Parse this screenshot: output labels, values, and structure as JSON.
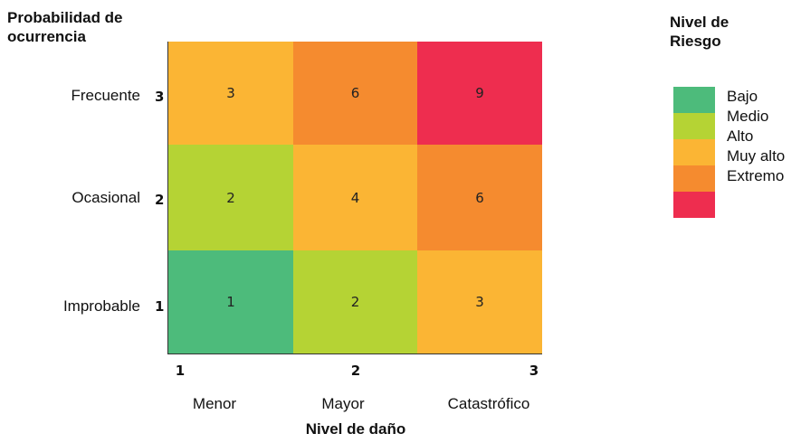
{
  "chart_data": {
    "type": "heatmap",
    "y_title": [
      "Probabilidad de",
      "ocurrencia"
    ],
    "x_title": "Nivel de daño",
    "rows": [
      {
        "label": "Frecuente",
        "value": 3,
        "cells": [
          3,
          6,
          9
        ]
      },
      {
        "label": "Ocasional",
        "value": 2,
        "cells": [
          2,
          4,
          6
        ]
      },
      {
        "label": "Improbable",
        "value": 1,
        "cells": [
          1,
          2,
          3
        ]
      }
    ],
    "columns": [
      {
        "label": "Menor",
        "value": 1
      },
      {
        "label": "Mayor",
        "value": 2
      },
      {
        "label": "Catastrófico",
        "value": 3
      }
    ],
    "legend": {
      "title": [
        "Nivel de",
        "Riesgo"
      ],
      "placement": "top-right",
      "items": [
        {
          "label": "Bajo",
          "color": "#4dbb7b"
        },
        {
          "label": "Medio",
          "color": "#b5d334"
        },
        {
          "label": "Alto",
          "color": "#fbb534"
        },
        {
          "label": "Muy alto",
          "color": "#f58b2f"
        },
        {
          "label": "Extremo",
          "color": "#ee2d4f"
        }
      ]
    },
    "cell_levels": [
      [
        "Alto",
        "Muy alto",
        "Extremo"
      ],
      [
        "Medio",
        "Alto",
        "Muy alto"
      ],
      [
        "Bajo",
        "Medio",
        "Alto"
      ]
    ]
  }
}
